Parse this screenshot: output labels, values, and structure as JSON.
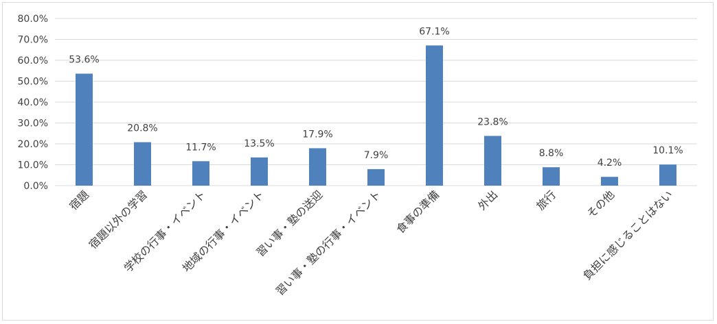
{
  "chart_data": {
    "type": "bar",
    "categories": [
      "宿題",
      "宿題以外の学習",
      "学校の行事・イベント",
      "地域の行事・イベント",
      "習い事・塾の送迎",
      "習い事・塾の行事・イベント",
      "食事の準備",
      "外出",
      "旅行",
      "その他",
      "負担に感じることはない"
    ],
    "values": [
      53.6,
      20.8,
      11.7,
      13.5,
      17.9,
      7.9,
      67.1,
      23.8,
      8.8,
      4.2,
      10.1
    ],
    "data_labels": [
      "53.6%",
      "20.8%",
      "11.7%",
      "13.5%",
      "17.9%",
      "7.9%",
      "67.1%",
      "23.8%",
      "8.8%",
      "4.2%",
      "10.1%"
    ],
    "y_ticks": [
      "0.0%",
      "10.0%",
      "20.0%",
      "30.0%",
      "40.0%",
      "50.0%",
      "60.0%",
      "70.0%",
      "80.0%"
    ],
    "ylim": [
      0,
      80
    ],
    "grid": true,
    "legend": "none",
    "bar_color": "#4f81bd",
    "grid_color": "#d9d9d9"
  }
}
